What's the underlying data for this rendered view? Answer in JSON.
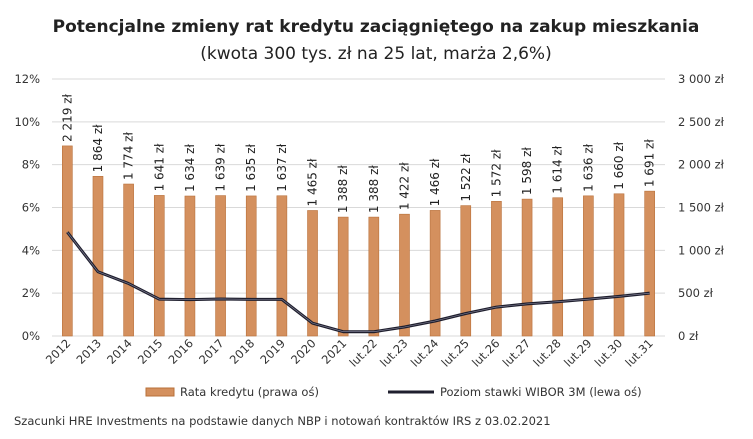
{
  "chart_data": {
    "type": "bar+line",
    "title": "Potencjalne zmieny rat kredytu zaciągniętego na zakup mieszkania",
    "subtitle": "(kwota 300 tys. zł na 25 lat, marża 2,6%)",
    "categories": [
      "2012",
      "2013",
      "2014",
      "2015",
      "2016",
      "2017",
      "2018",
      "2019",
      "2020",
      "2021",
      "lut.22",
      "lut.23",
      "lut.24",
      "lut.25",
      "lut.26",
      "lut.27",
      "lut.28",
      "lut.29",
      "lut.30",
      "lut.31"
    ],
    "series": [
      {
        "name": "Rata kredytu (prawa oś)",
        "type": "bar",
        "axis": "right",
        "color": "#D4905E",
        "values": [
          2219,
          1864,
          1774,
          1641,
          1634,
          1639,
          1635,
          1637,
          1465,
          1388,
          1388,
          1422,
          1466,
          1522,
          1572,
          1598,
          1614,
          1636,
          1660,
          1691
        ],
        "labels": [
          "2 219 zł",
          "1 864 zł",
          "1 774 zł",
          "1 641 zł",
          "1 634 zł",
          "1 639 zł",
          "1 635 zł",
          "1 637 zł",
          "1 465 zł",
          "1 388 zł",
          "1 388 zł",
          "1 422 zł",
          "1 466 zł",
          "1 522 zł",
          "1 572 zł",
          "1 598 zł",
          "1 614 zł",
          "1 636 zł",
          "1 660 zł",
          "1 691 zł"
        ]
      },
      {
        "name": "Poziom stawki WIBOR 3M (lewa oś)",
        "type": "line",
        "axis": "left",
        "color": "#1F1F2E",
        "values": [
          4.85,
          3.0,
          2.45,
          1.72,
          1.7,
          1.73,
          1.71,
          1.71,
          0.6,
          0.2,
          0.2,
          0.42,
          0.7,
          1.05,
          1.35,
          1.5,
          1.6,
          1.72,
          1.85,
          2.0
        ]
      }
    ],
    "left_axis": {
      "ylim": [
        0,
        12
      ],
      "ticks": [
        "0%",
        "2%",
        "4%",
        "6%",
        "8%",
        "10%",
        "12%"
      ]
    },
    "right_axis": {
      "ylim": [
        0,
        3000
      ],
      "ticks": [
        "0 zł",
        "500 zł",
        "1 000 zł",
        "1 500 zł",
        "2 000 zł",
        "2 500 zł",
        "3 000 zł"
      ]
    },
    "grid": true,
    "legend": "bottom",
    "source": "Szacunki HRE Investments na podstawie danych NBP i notowań kontraktów IRS z 03.02.2021"
  }
}
